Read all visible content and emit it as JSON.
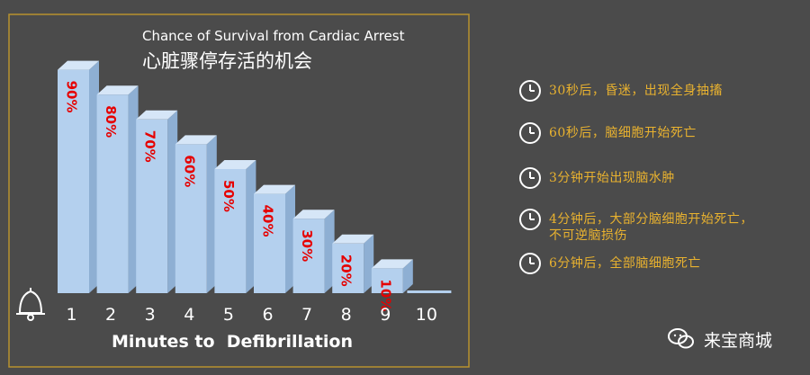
{
  "chart_data": {
    "type": "bar",
    "title": "Chance of Survival from Cardiac Arrest",
    "subtitle": "心脏骤停存活的机会",
    "xlabel": "Minutes to  Defibrillation",
    "ylabel": "",
    "ylim": [
      0,
      100
    ],
    "categories": [
      "1",
      "2",
      "3",
      "4",
      "5",
      "6",
      "7",
      "8",
      "9",
      "10"
    ],
    "values": [
      90,
      80,
      70,
      60,
      50,
      40,
      30,
      20,
      10,
      0
    ],
    "value_labels": [
      "90%",
      "80%",
      "70%",
      "60%",
      "50%",
      "40%",
      "30%",
      "20%",
      "10%",
      ""
    ],
    "bar_color": "#b4d0ee",
    "label_color": "#e60000",
    "frame_color": "#b8922e"
  },
  "timeline": [
    {
      "icon": "clock-icon",
      "text": "30秒后，昏迷，出现全身抽搐"
    },
    {
      "icon": "clock-icon",
      "text": "60秒后，脑细胞开始死亡"
    },
    {
      "icon": "clock-icon",
      "text": "3分钟开始出现脑水肿"
    },
    {
      "icon": "clock-icon",
      "text": "4分钟后，大部分脑细胞开始死亡，\n不可逆脑损伤"
    },
    {
      "icon": "clock-icon",
      "text": "6分钟后，全部脑细胞死亡"
    }
  ],
  "watermark": {
    "text": "来宝商城",
    "icon": "wechat-icon"
  },
  "colors": {
    "background": "#4b4b4b",
    "timeline_text": "#e9b22f"
  }
}
